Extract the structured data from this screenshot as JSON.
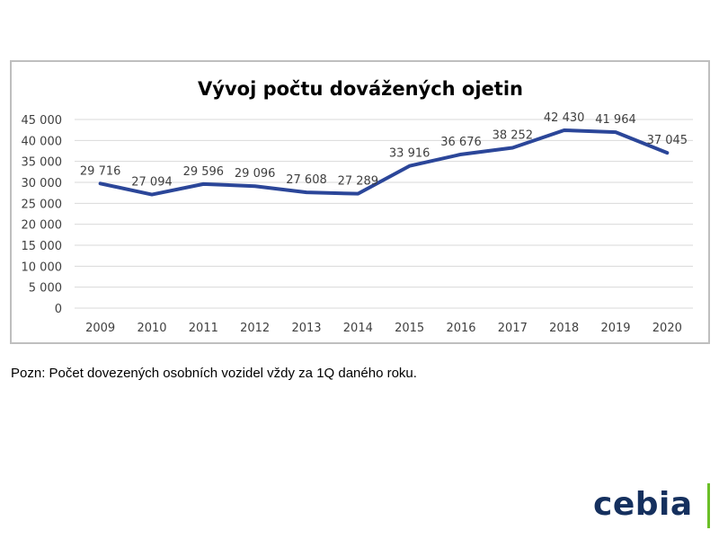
{
  "chart_data": {
    "type": "line",
    "title": "Vývoj počtu dovážených ojetin",
    "xlabel": "",
    "ylabel": "",
    "categories": [
      "2009",
      "2010",
      "2011",
      "2012",
      "2013",
      "2014",
      "2015",
      "2016",
      "2017",
      "2018",
      "2019",
      "2020"
    ],
    "series": [
      {
        "values": [
          29716,
          27094,
          29596,
          29096,
          27608,
          27289,
          33916,
          36676,
          38252,
          42430,
          41964,
          37045
        ],
        "labels": [
          "29 716",
          "27 094",
          "29 596",
          "29 096",
          "27 608",
          "27 289",
          "33 916",
          "36 676",
          "38 252",
          "42 430",
          "41 964",
          "37 045"
        ],
        "color": "#2b4699"
      }
    ],
    "ylim": [
      0,
      45000
    ],
    "yticks": [
      0,
      5000,
      10000,
      15000,
      20000,
      25000,
      30000,
      35000,
      40000,
      45000
    ],
    "ytick_labels": [
      "0",
      "5 000",
      "10 000",
      "15 000",
      "20 000",
      "25 000",
      "30 000",
      "35 000",
      "40 000",
      "45 000"
    ],
    "grid": true,
    "legend": "none",
    "colors": {
      "line": "#2b4699",
      "grid": "#d9d9d9",
      "text": "#404040",
      "frame": "#bfbfbf"
    }
  },
  "note": "Pozn: Počet dovezených osobních vozidel vždy za 1Q daného roku.",
  "logo": {
    "text": "cebia",
    "text_color": "#15305e",
    "accent_color": "#6bbf27"
  }
}
